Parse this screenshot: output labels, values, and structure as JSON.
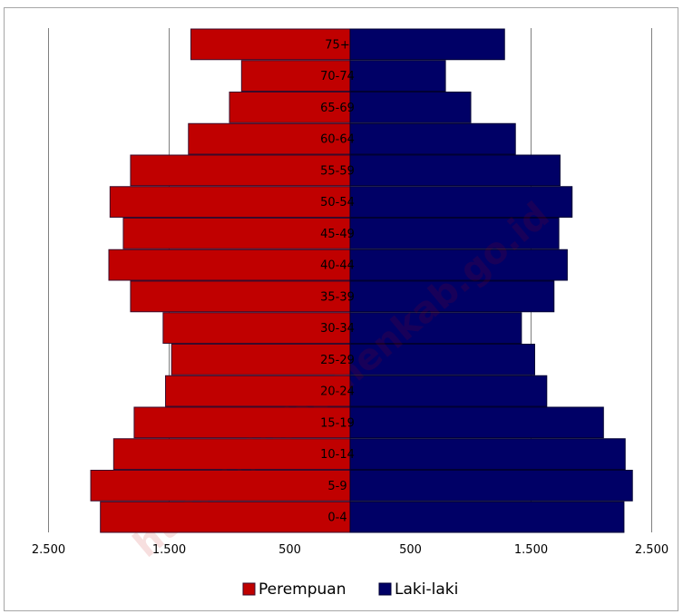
{
  "chart_data": {
    "type": "bar",
    "orientation": "horizontal-population-pyramid",
    "categories": [
      "0-4",
      "5-9",
      "10-14",
      "15-19",
      "20-24",
      "25-29",
      "30-34",
      "35-39",
      "40-44",
      "45-49",
      "50-54",
      "55-59",
      "60-64",
      "65-69",
      "70-74",
      "75+"
    ],
    "series": [
      {
        "name": "Perempuan",
        "color": "#c00000",
        "values": [
          2070,
          2150,
          1960,
          1790,
          1530,
          1480,
          1550,
          1820,
          2000,
          1880,
          1990,
          1820,
          1340,
          1000,
          900,
          1320
        ]
      },
      {
        "name": "Laki-laki",
        "color": "#000066",
        "values": [
          2270,
          2340,
          2280,
          2100,
          1630,
          1530,
          1420,
          1690,
          1800,
          1730,
          1840,
          1740,
          1370,
          1000,
          790,
          1280
        ]
      }
    ],
    "xticks": [
      "2.500",
      "1.500",
      "500",
      "500",
      "1.500",
      "2.500"
    ],
    "xlim": [
      -2500,
      2500
    ],
    "grid": "vertical",
    "legend": "bottom",
    "watermark": "https://kebumenkab.go.id"
  }
}
